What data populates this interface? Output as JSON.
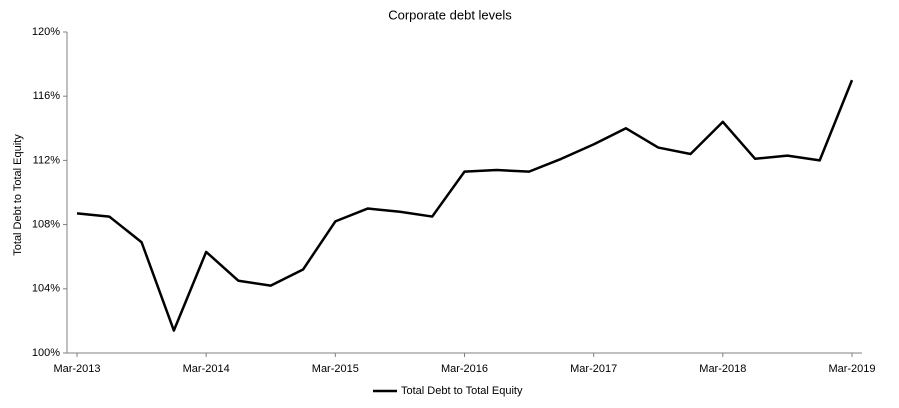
{
  "chart_data": {
    "type": "line",
    "title": "Corporate debt levels",
    "y_label": "Total Debt to Total Equity",
    "categories": [
      "Mar-2013",
      null,
      null,
      null,
      "Mar-2014",
      null,
      null,
      null,
      "Mar-2015",
      null,
      null,
      null,
      "Mar-2016",
      null,
      null,
      null,
      "Mar-2017",
      null,
      null,
      null,
      "Mar-2018",
      null,
      null,
      null,
      "Mar-2019"
    ],
    "series": [
      {
        "name": "Total Debt to Total Equity",
        "color": "#000000",
        "values": [
          108.7,
          108.5,
          106.9,
          101.4,
          106.3,
          104.5,
          104.2,
          105.2,
          108.2,
          109.0,
          108.8,
          108.5,
          111.3,
          111.4,
          111.3,
          112.1,
          113.0,
          114.0,
          112.8,
          112.4,
          114.4,
          112.1,
          112.3,
          112.0,
          117.0
        ]
      }
    ],
    "ylim": [
      100,
      120
    ],
    "yticks": [
      {
        "value": 100,
        "label": "100%"
      },
      {
        "value": 104,
        "label": "104%"
      },
      {
        "value": 108,
        "label": "108%"
      },
      {
        "value": 112,
        "label": "112%"
      },
      {
        "value": 116,
        "label": "116%"
      },
      {
        "value": 120,
        "label": "120%"
      }
    ],
    "grid": false,
    "legend": "bottom"
  }
}
